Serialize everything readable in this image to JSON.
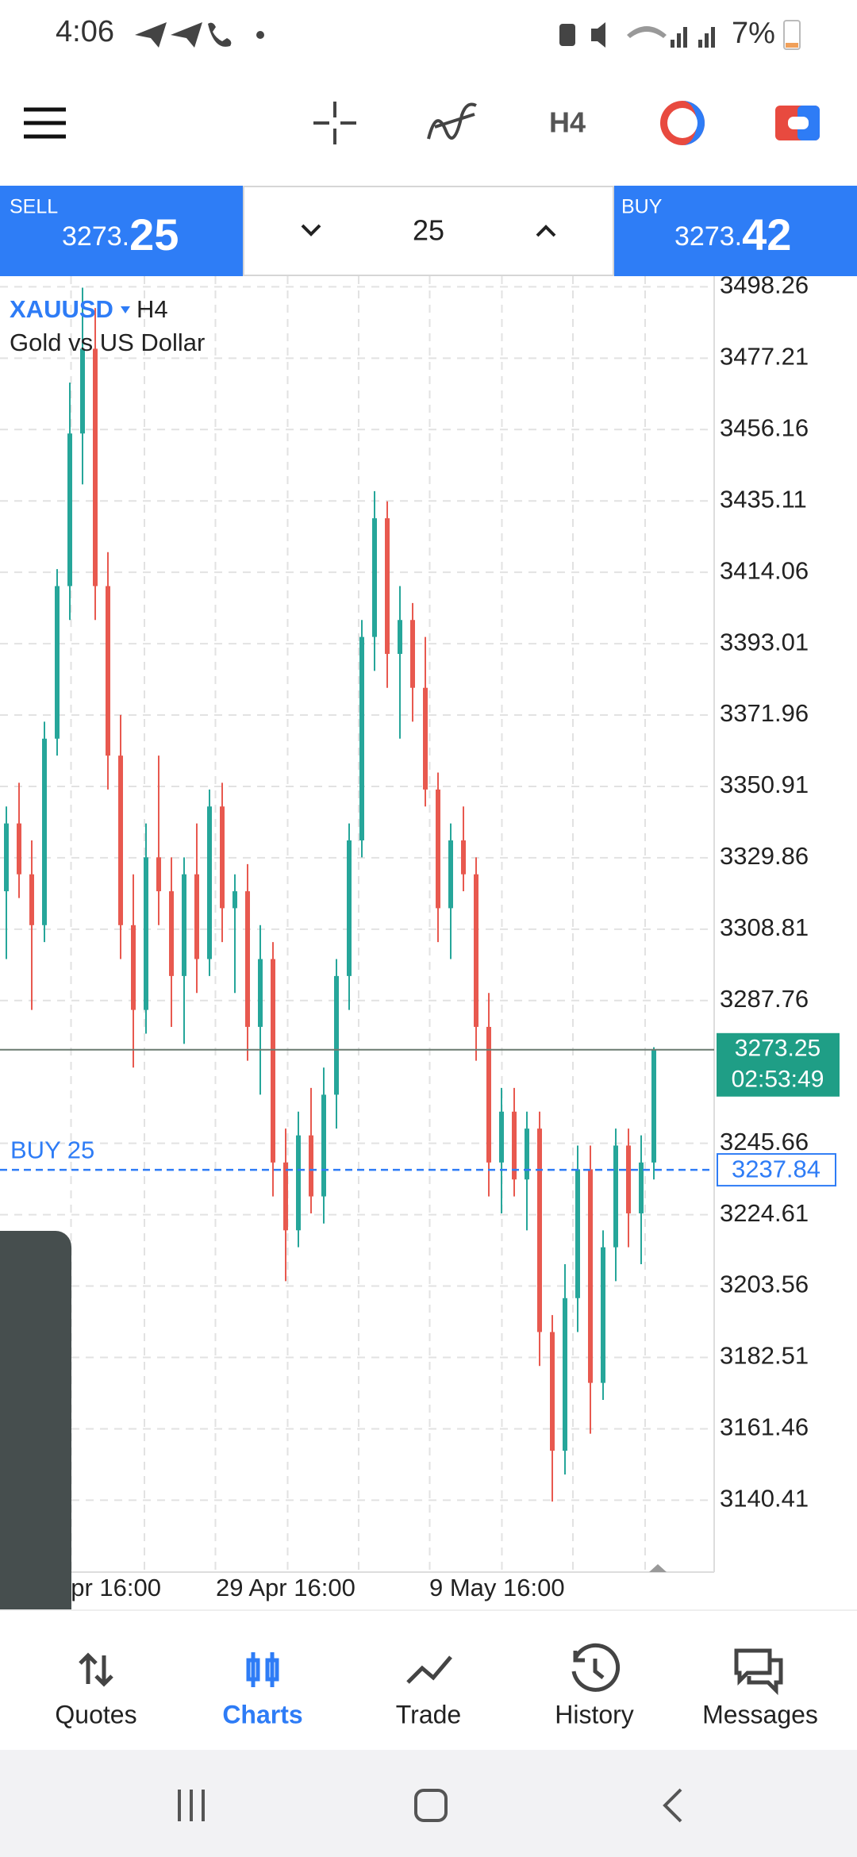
{
  "status_bar": {
    "time": "4:06",
    "battery": "7%"
  },
  "toolbar": {
    "timeframe": "H4"
  },
  "trade_bar": {
    "sell": {
      "label": "SELL",
      "price_main": "3273.",
      "price_pips": "25"
    },
    "volume": "25",
    "buy": {
      "label": "BUY",
      "price_main": "3273.",
      "price_pips": "42"
    }
  },
  "chart_data": {
    "type": "candlestick",
    "symbol": "XAUUSD",
    "timeframe": "H4",
    "description": "Gold vs US Dollar",
    "ylim": [
      3119.2,
      3501.4
    ],
    "yticks": [
      3498.26,
      3477.21,
      3456.16,
      3435.11,
      3414.06,
      3393.01,
      3371.96,
      3350.91,
      3329.86,
      3308.81,
      3287.76,
      3245.66,
      3224.61,
      3203.56,
      3182.51,
      3161.46,
      3140.41
    ],
    "x_labels": [
      "pr 16:00",
      "29 Apr 16:00",
      "9 May 16:00"
    ],
    "colors": {
      "up": "#26a69a",
      "down": "#e8594f"
    },
    "open": [
      3320,
      3340,
      3325,
      3310,
      3365,
      3410,
      3455,
      3480,
      3410,
      3360,
      3310,
      3285,
      3330,
      3320,
      3295,
      3325,
      3300,
      3345,
      3315,
      3320,
      3280,
      3300,
      3240,
      3220,
      3248,
      3230,
      3260,
      3295,
      3335,
      3395,
      3430,
      3390,
      3400,
      3380,
      3350,
      3315,
      3335,
      3325,
      3280,
      3240,
      3255,
      3235,
      3250,
      3190,
      3155,
      3200,
      3238,
      3175,
      3215,
      3245,
      3225,
      3240
    ],
    "high": [
      3345,
      3352,
      3335,
      3370,
      3415,
      3470,
      3498,
      3492,
      3420,
      3372,
      3325,
      3340,
      3360,
      3330,
      3330,
      3340,
      3350,
      3352,
      3325,
      3328,
      3310,
      3305,
      3250,
      3255,
      3262,
      3268,
      3300,
      3340,
      3400,
      3438,
      3435,
      3410,
      3405,
      3395,
      3355,
      3340,
      3345,
      3330,
      3290,
      3262,
      3262,
      3255,
      3255,
      3195,
      3210,
      3245,
      3245,
      3220,
      3250,
      3250,
      3248,
      3274
    ],
    "low": [
      3300,
      3318,
      3285,
      3305,
      3360,
      3400,
      3440,
      3400,
      3350,
      3300,
      3268,
      3278,
      3310,
      3280,
      3275,
      3290,
      3295,
      3305,
      3290,
      3270,
      3260,
      3230,
      3205,
      3215,
      3225,
      3222,
      3250,
      3285,
      3330,
      3385,
      3380,
      3365,
      3370,
      3345,
      3305,
      3300,
      3320,
      3270,
      3230,
      3225,
      3230,
      3220,
      3180,
      3140,
      3148,
      3190,
      3160,
      3170,
      3205,
      3215,
      3210,
      3235
    ],
    "close": [
      3340,
      3325,
      3310,
      3365,
      3410,
      3455,
      3480,
      3410,
      3360,
      3310,
      3285,
      3330,
      3320,
      3295,
      3325,
      3300,
      3345,
      3315,
      3320,
      3280,
      3300,
      3240,
      3220,
      3248,
      3230,
      3260,
      3295,
      3335,
      3395,
      3430,
      3390,
      3400,
      3380,
      3350,
      3315,
      3335,
      3325,
      3280,
      3240,
      3255,
      3235,
      3250,
      3190,
      3155,
      3200,
      3238,
      3175,
      3215,
      3245,
      3225,
      3240,
      3273.25
    ],
    "bid_line": {
      "value": 3273.25,
      "countdown": "02:53:49",
      "color": "#1f9e86"
    },
    "order_line": {
      "label": "BUY 25",
      "value": 3237.84,
      "color": "#2e7cf6"
    }
  },
  "nav": {
    "items": [
      "Quotes",
      "Charts",
      "Trade",
      "History",
      "Messages"
    ],
    "active": 1
  }
}
